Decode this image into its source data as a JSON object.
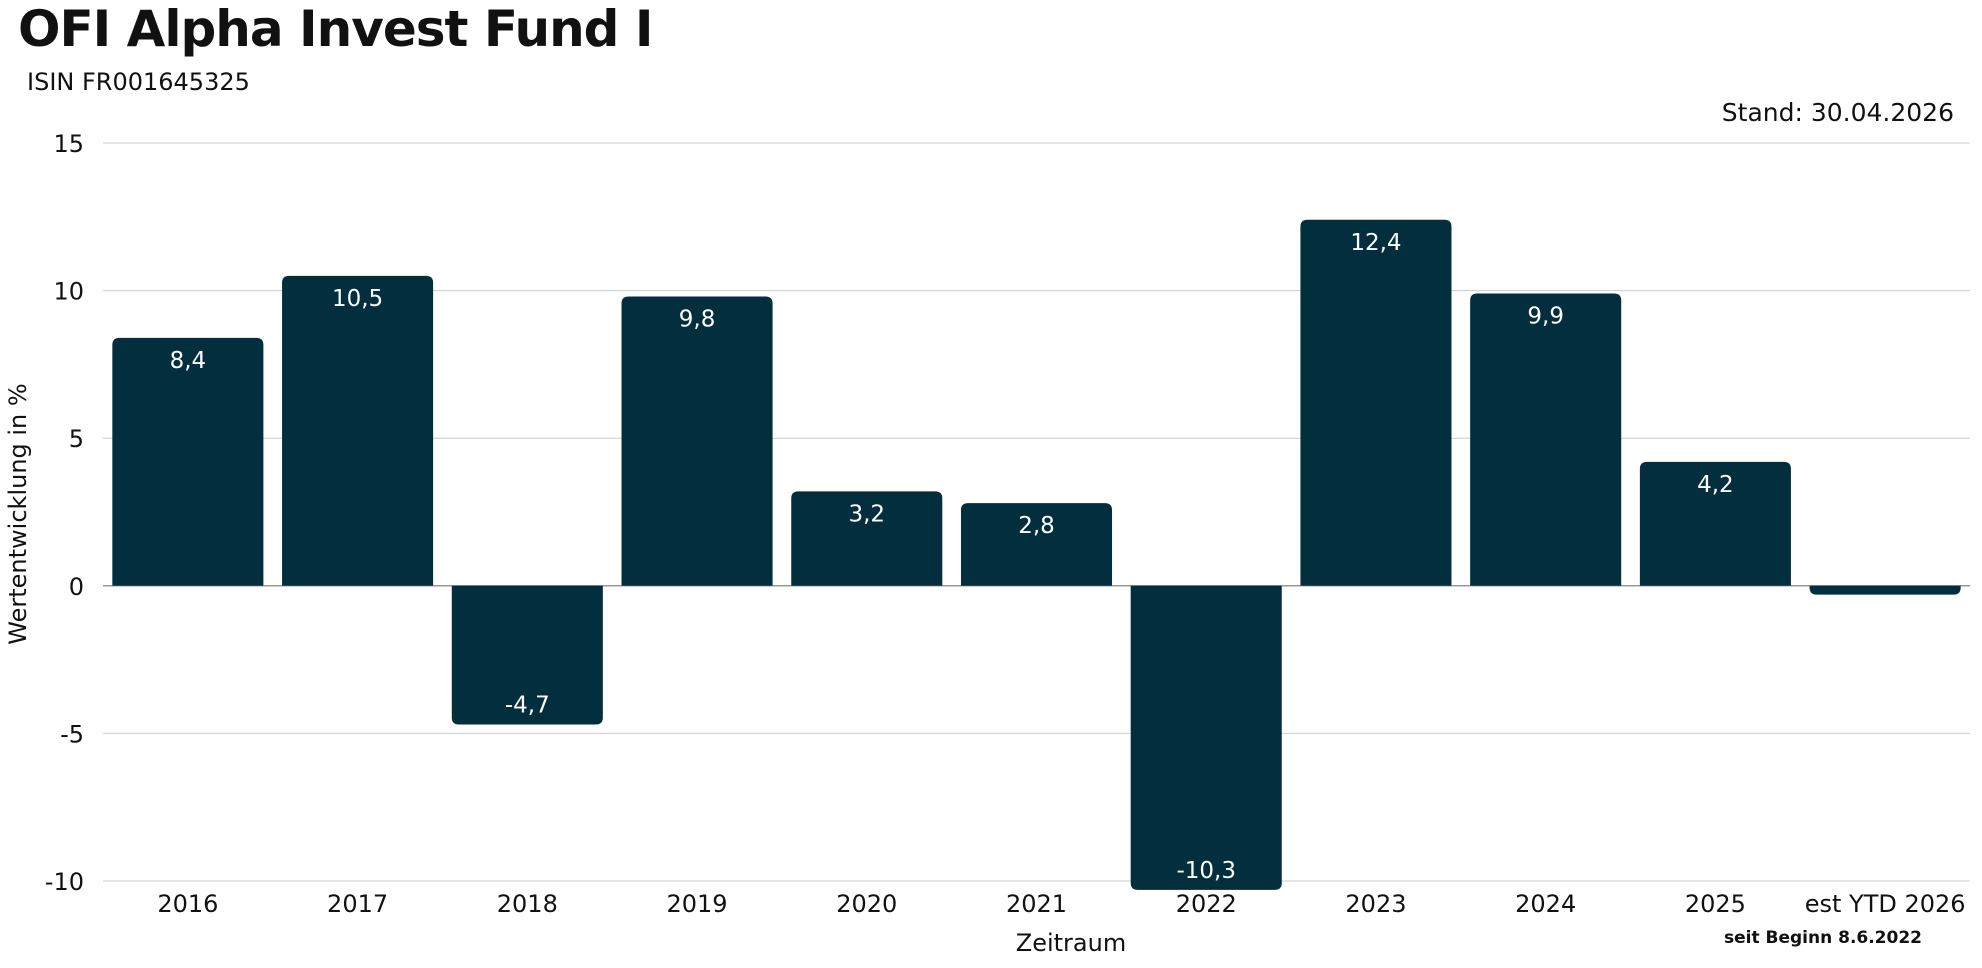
{
  "header": {
    "title": "OFI Alpha Invest Fund I",
    "isin": "ISIN FR001645325",
    "stand": "Stand: 30.04.2026"
  },
  "footnote": "seit Beginn 8.6.2022",
  "colors": {
    "bar": "#022e3d",
    "grid": "#cccccc",
    "zero": "#999999"
  },
  "chart_data": {
    "type": "bar",
    "title": "OFI Alpha Invest Fund I",
    "xlabel": "Zeitraum",
    "ylabel": "Wertentwicklung in %",
    "categories": [
      "2016",
      "2017",
      "2018",
      "2019",
      "2020",
      "2021",
      "2022",
      "2023",
      "2024",
      "2025",
      "est YTD 2026"
    ],
    "values": [
      8.4,
      10.5,
      -4.7,
      9.8,
      3.2,
      2.8,
      -10.3,
      12.4,
      9.9,
      4.2,
      -0.3
    ],
    "value_labels": [
      "8,4",
      "10,5",
      "-4,7",
      "9,8",
      "3,2",
      "2,8",
      "-10,3",
      "12,4",
      "9,9",
      "4,2",
      ""
    ],
    "yticks": [
      15,
      10,
      5,
      0,
      -5,
      -10
    ],
    "ylim": [
      -10,
      15
    ],
    "grid": true
  }
}
